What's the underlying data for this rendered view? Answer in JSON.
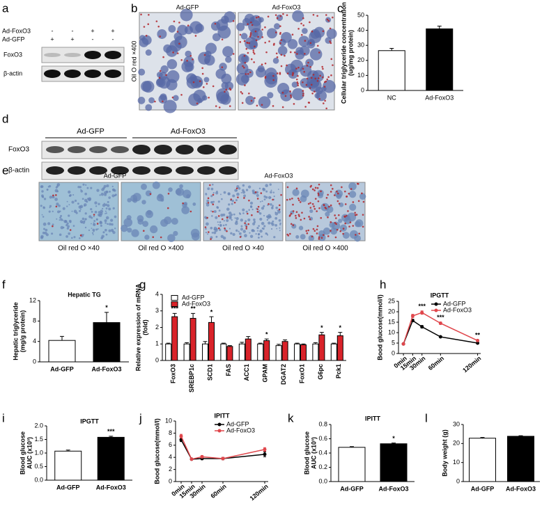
{
  "panel_labels": [
    "a",
    "b",
    "c",
    "d",
    "e",
    "f",
    "g",
    "h",
    "i",
    "j",
    "k",
    "l"
  ],
  "blot_a": {
    "conditions": [
      {
        "name": "Ad-FoxO3",
        "signs": [
          "-",
          "-",
          "+",
          "+"
        ]
      },
      {
        "name": "Ad-GFP",
        "signs": [
          "+",
          "+",
          "-",
          "-"
        ]
      }
    ],
    "rows": [
      "FoxO3",
      "β-actin"
    ]
  },
  "image_b": {
    "labels": [
      "Ad-GFP",
      "Ad-FoxO3"
    ],
    "side": "Oil O red ×400"
  },
  "blot_d": {
    "groups": [
      "Ad-GFP",
      "Ad-FoxO3"
    ],
    "rows": [
      "FoxO3",
      "β-actin"
    ]
  },
  "image_e": {
    "groups": [
      "Ad-GFP",
      "Ad-FoxO3"
    ],
    "captions": [
      "Oil red O ×40",
      "Oil red O ×400",
      "Oil red O ×40",
      "Oil red O ×400"
    ]
  },
  "chart_data": [
    {
      "type": "bar",
      "y_label": [
        "Cellular triglyceride concentration",
        "(ug/mg protein)"
      ],
      "categories": [
        "NC",
        "Ad-FoxO3"
      ],
      "values": [
        26.5,
        41
      ],
      "errors": [
        1.5,
        1.8
      ],
      "colors": [
        "#ffffff",
        "#000000"
      ],
      "ylim": [
        0,
        50
      ],
      "yticks": [
        0,
        10,
        20,
        30,
        40,
        50
      ]
    },
    {
      "type": "bar",
      "title": "Hepatic TG",
      "y_label": [
        "Hepatic triglyceride",
        "(mg/g protein)"
      ],
      "categories": [
        "Ad-GFP",
        "Ad-FoxO3"
      ],
      "values": [
        4.2,
        7.7
      ],
      "errors": [
        0.8,
        2.0
      ],
      "colors": [
        "#ffffff",
        "#000000"
      ],
      "significance": [
        null,
        "*"
      ],
      "ylim": [
        0,
        12
      ],
      "yticks": [
        0,
        4,
        8,
        12
      ]
    },
    {
      "type": "bar",
      "y_label": [
        "Relative expression of mRNA",
        "(fold)"
      ],
      "categories": [
        "FoxO3",
        "SREBP1c",
        "SCD1",
        "FAS",
        "ACC1",
        "GPAM",
        "DGAT2",
        "FoxO1",
        "G6pc",
        "Pck1"
      ],
      "series": [
        {
          "name": "Ad-GFP",
          "color": "#ffffff",
          "values": [
            1,
            1,
            1,
            1,
            1,
            1,
            0.9,
            1,
            1,
            1
          ],
          "errors": [
            0.05,
            0.08,
            0.15,
            0.05,
            0.1,
            0.05,
            0.08,
            0.05,
            0.08,
            0.05
          ]
        },
        {
          "name": "Ad-FoxO3",
          "color": "#d9232a",
          "values": [
            2.65,
            2.55,
            2.3,
            0.85,
            1.3,
            1.2,
            1.15,
            0.95,
            1.55,
            1.5
          ],
          "errors": [
            0.2,
            0.3,
            0.35,
            0.05,
            0.15,
            0.1,
            0.1,
            0.05,
            0.15,
            0.2
          ]
        }
      ],
      "significance": [
        "***",
        "**",
        "*",
        null,
        null,
        "*",
        null,
        null,
        "*",
        "*"
      ],
      "ylim": [
        0,
        4
      ],
      "yticks": [
        0,
        1,
        2,
        3,
        4
      ]
    },
    {
      "type": "line",
      "title": "IPGTT",
      "y_label": [
        "Bood glucose(mmol/l)"
      ],
      "x": [
        0,
        15,
        30,
        60,
        120
      ],
      "series": [
        {
          "name": "Ad-GFP",
          "color": "#000000",
          "values": [
            4.6,
            15.8,
            12.8,
            8.0,
            5.0
          ],
          "errors": [
            0.3,
            0.6,
            0.6,
            0.3,
            0.3
          ]
        },
        {
          "name": "Ad-FoxO3",
          "color": "#e0474c",
          "values": [
            4.6,
            18.0,
            19.6,
            14.5,
            6.2
          ],
          "errors": [
            0.3,
            0.8,
            0.8,
            0.6,
            0.4
          ]
        }
      ],
      "significance": [
        null,
        null,
        "***",
        "***",
        "**"
      ],
      "xlim": [
        -8,
        125
      ],
      "xticks": [
        {
          "value": 0,
          "label": "0min"
        },
        {
          "value": 15,
          "label": "15min"
        },
        {
          "value": 30,
          "label": "30min"
        },
        {
          "value": 60,
          "label": "60min"
        },
        {
          "value": 120,
          "label": "120min"
        }
      ],
      "ylim": [
        0,
        25
      ],
      "yticks": [
        0,
        5,
        10,
        15,
        20,
        25
      ]
    },
    {
      "type": "bar",
      "title": "IPGTT",
      "y_label": [
        "Blood glucose",
        "AUC (x10³)"
      ],
      "categories": [
        "Ad-GFP",
        "Ad-FoxO3"
      ],
      "values": [
        1.07,
        1.58
      ],
      "errors": [
        0.04,
        0.04
      ],
      "colors": [
        "#ffffff",
        "#000000"
      ],
      "significance": [
        null,
        "***"
      ],
      "ylim": [
        0,
        2
      ],
      "yticks": [
        {
          "value": 0,
          "label": "0.0"
        },
        0.5,
        {
          "value": 1,
          "label": "1.0"
        },
        1.5,
        {
          "value": 2,
          "label": "2.0"
        }
      ]
    },
    {
      "type": "line",
      "title": "IPITT",
      "y_label": [
        "Bood glucose(mmol/l)"
      ],
      "x": [
        0,
        15,
        30,
        60,
        120
      ],
      "series": [
        {
          "name": "Ad-GFP",
          "color": "#000000",
          "values": [
            6.9,
            3.7,
            3.8,
            3.8,
            4.5
          ],
          "errors": [
            0.3,
            0.1,
            0.2,
            0.2,
            0.4
          ]
        },
        {
          "name": "Ad-FoxO3",
          "color": "#e0474c",
          "values": [
            7.5,
            3.7,
            4.1,
            3.8,
            5.3
          ],
          "errors": [
            0.3,
            0.1,
            0.2,
            0.2,
            0.3
          ]
        }
      ],
      "xlim": [
        -8,
        125
      ],
      "xticks": [
        {
          "value": 0,
          "label": "0min"
        },
        {
          "value": 15,
          "label": "15min"
        },
        {
          "value": 30,
          "label": "30min"
        },
        {
          "value": 60,
          "label": "60min"
        },
        {
          "value": 120,
          "label": "120min"
        }
      ],
      "ylim": [
        0,
        10
      ],
      "yticks": [
        0,
        2,
        4,
        6,
        8,
        10
      ]
    },
    {
      "type": "bar",
      "title": "IPITT",
      "y_label": [
        "Blood glucose",
        "AUC (x10³)"
      ],
      "categories": [
        "Ad-GFP",
        "Ad-FoxO3"
      ],
      "values": [
        0.48,
        0.53
      ],
      "errors": [
        0.01,
        0.01
      ],
      "colors": [
        "#ffffff",
        "#000000"
      ],
      "significance": [
        null,
        "*"
      ],
      "ylim": [
        0,
        0.8
      ],
      "yticks": [
        {
          "value": 0,
          "label": "0.0"
        },
        0.2,
        0.4,
        0.6,
        0.8
      ]
    },
    {
      "type": "bar",
      "y_label": [
        "Body weight (g)"
      ],
      "categories": [
        "Ad-GFP",
        "Ad-FoxO3"
      ],
      "values": [
        22.8,
        23.8
      ],
      "errors": [
        0.4,
        0.3
      ],
      "colors": [
        "#ffffff",
        "#000000"
      ],
      "ylim": [
        0,
        30
      ],
      "yticks": [
        0,
        10,
        20,
        30
      ]
    }
  ]
}
